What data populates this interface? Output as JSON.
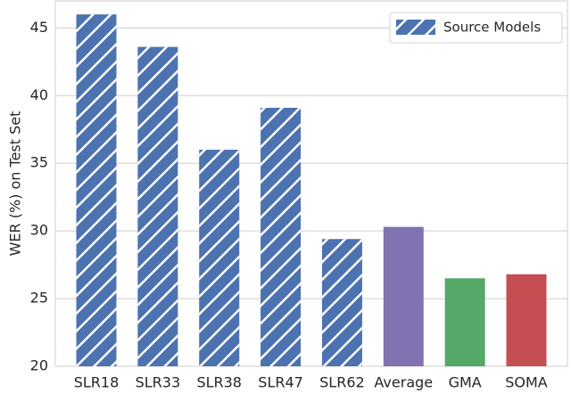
{
  "chart_data": {
    "type": "bar",
    "ylabel": "WER (%) on Test Set",
    "categories": [
      "SLR18",
      "SLR33",
      "SLR38",
      "SLR47",
      "SLR62",
      "Average",
      "GMA",
      "SOMA"
    ],
    "values": [
      46.0,
      43.6,
      36.0,
      39.1,
      29.4,
      30.3,
      26.5,
      26.8
    ],
    "colors": [
      "#4c72b0",
      "#4c72b0",
      "#4c72b0",
      "#4c72b0",
      "#4c72b0",
      "#8172b2",
      "#55a868",
      "#c44e52"
    ],
    "hatched": [
      true,
      true,
      true,
      true,
      true,
      false,
      false,
      false
    ],
    "legend": {
      "label": "Source Models",
      "color": "#4c72b0",
      "position": "upper right"
    },
    "ylim": [
      20,
      47
    ],
    "yticks": [
      20,
      25,
      30,
      35,
      40,
      45
    ],
    "grid": true
  }
}
